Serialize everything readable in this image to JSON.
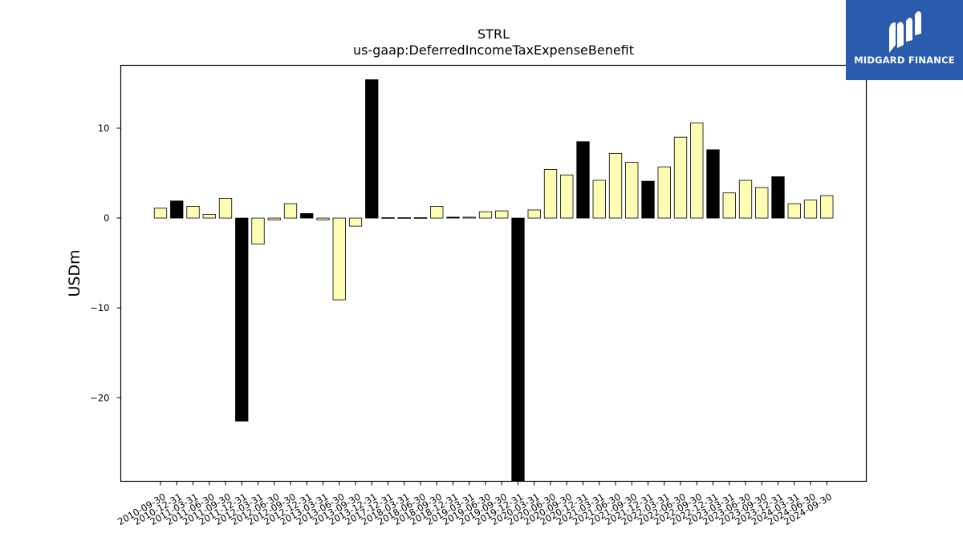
{
  "chart_data": {
    "type": "bar",
    "title": "STRL",
    "subtitle": "us-gaap:DeferredIncomeTaxExpenseBenefit",
    "ylabel": "USDm",
    "xlabel": "",
    "ylim": [
      -29.3,
      17.0
    ],
    "yticks": [
      -20,
      -10,
      0,
      10
    ],
    "ytick_labels": [
      "−20",
      "−10",
      "0",
      "10"
    ],
    "grid": false,
    "colors": {
      "default": "#fdfdb4",
      "highlight": "#000000",
      "edge": "#000000"
    },
    "categories": [
      "2010-09-30",
      "2010-12-31",
      "2011-03-31",
      "2011-06-30",
      "2011-09-30",
      "2011-12-31",
      "2012-03-31",
      "2012-06-30",
      "2012-09-30",
      "2012-12-31",
      "2013-03-31",
      "2013-06-30",
      "2013-09-30",
      "2013-12-31",
      "2017-12-31",
      "2018-03-31",
      "2018-06-30",
      "2018-09-30",
      "2018-12-31",
      "2019-03-31",
      "2019-06-30",
      "2019-09-30",
      "2019-12-31",
      "2020-03-31",
      "2020-06-30",
      "2020-09-30",
      "2020-12-31",
      "2021-03-31",
      "2021-06-30",
      "2021-09-30",
      "2021-12-31",
      "2022-03-31",
      "2022-06-30",
      "2022-09-30",
      "2022-12-31",
      "2023-03-31",
      "2023-06-30",
      "2023-09-30",
      "2023-12-31",
      "2024-03-31",
      "2024-06-30",
      "2024-09-30"
    ],
    "values": [
      1.1,
      1.9,
      1.3,
      0.4,
      2.2,
      -22.6,
      -2.9,
      -0.2,
      1.6,
      0.5,
      -0.2,
      -9.1,
      -0.9,
      15.4,
      0.0,
      0.0,
      0.0,
      1.3,
      0.1,
      0.1,
      0.7,
      0.8,
      -29.3,
      0.9,
      5.4,
      4.8,
      8.5,
      4.2,
      7.2,
      6.2,
      4.1,
      5.7,
      9.0,
      10.6,
      7.6,
      2.8,
      4.2,
      3.4,
      4.6,
      1.6,
      2.0,
      2.5
    ],
    "highlighted": [
      false,
      true,
      false,
      false,
      false,
      true,
      false,
      false,
      false,
      true,
      false,
      false,
      false,
      true,
      false,
      false,
      false,
      false,
      true,
      false,
      false,
      false,
      true,
      false,
      false,
      false,
      true,
      false,
      false,
      false,
      true,
      false,
      false,
      false,
      true,
      false,
      false,
      false,
      true,
      false,
      false,
      false
    ]
  },
  "logo": {
    "text": "MIDGARD FINANCE"
  }
}
